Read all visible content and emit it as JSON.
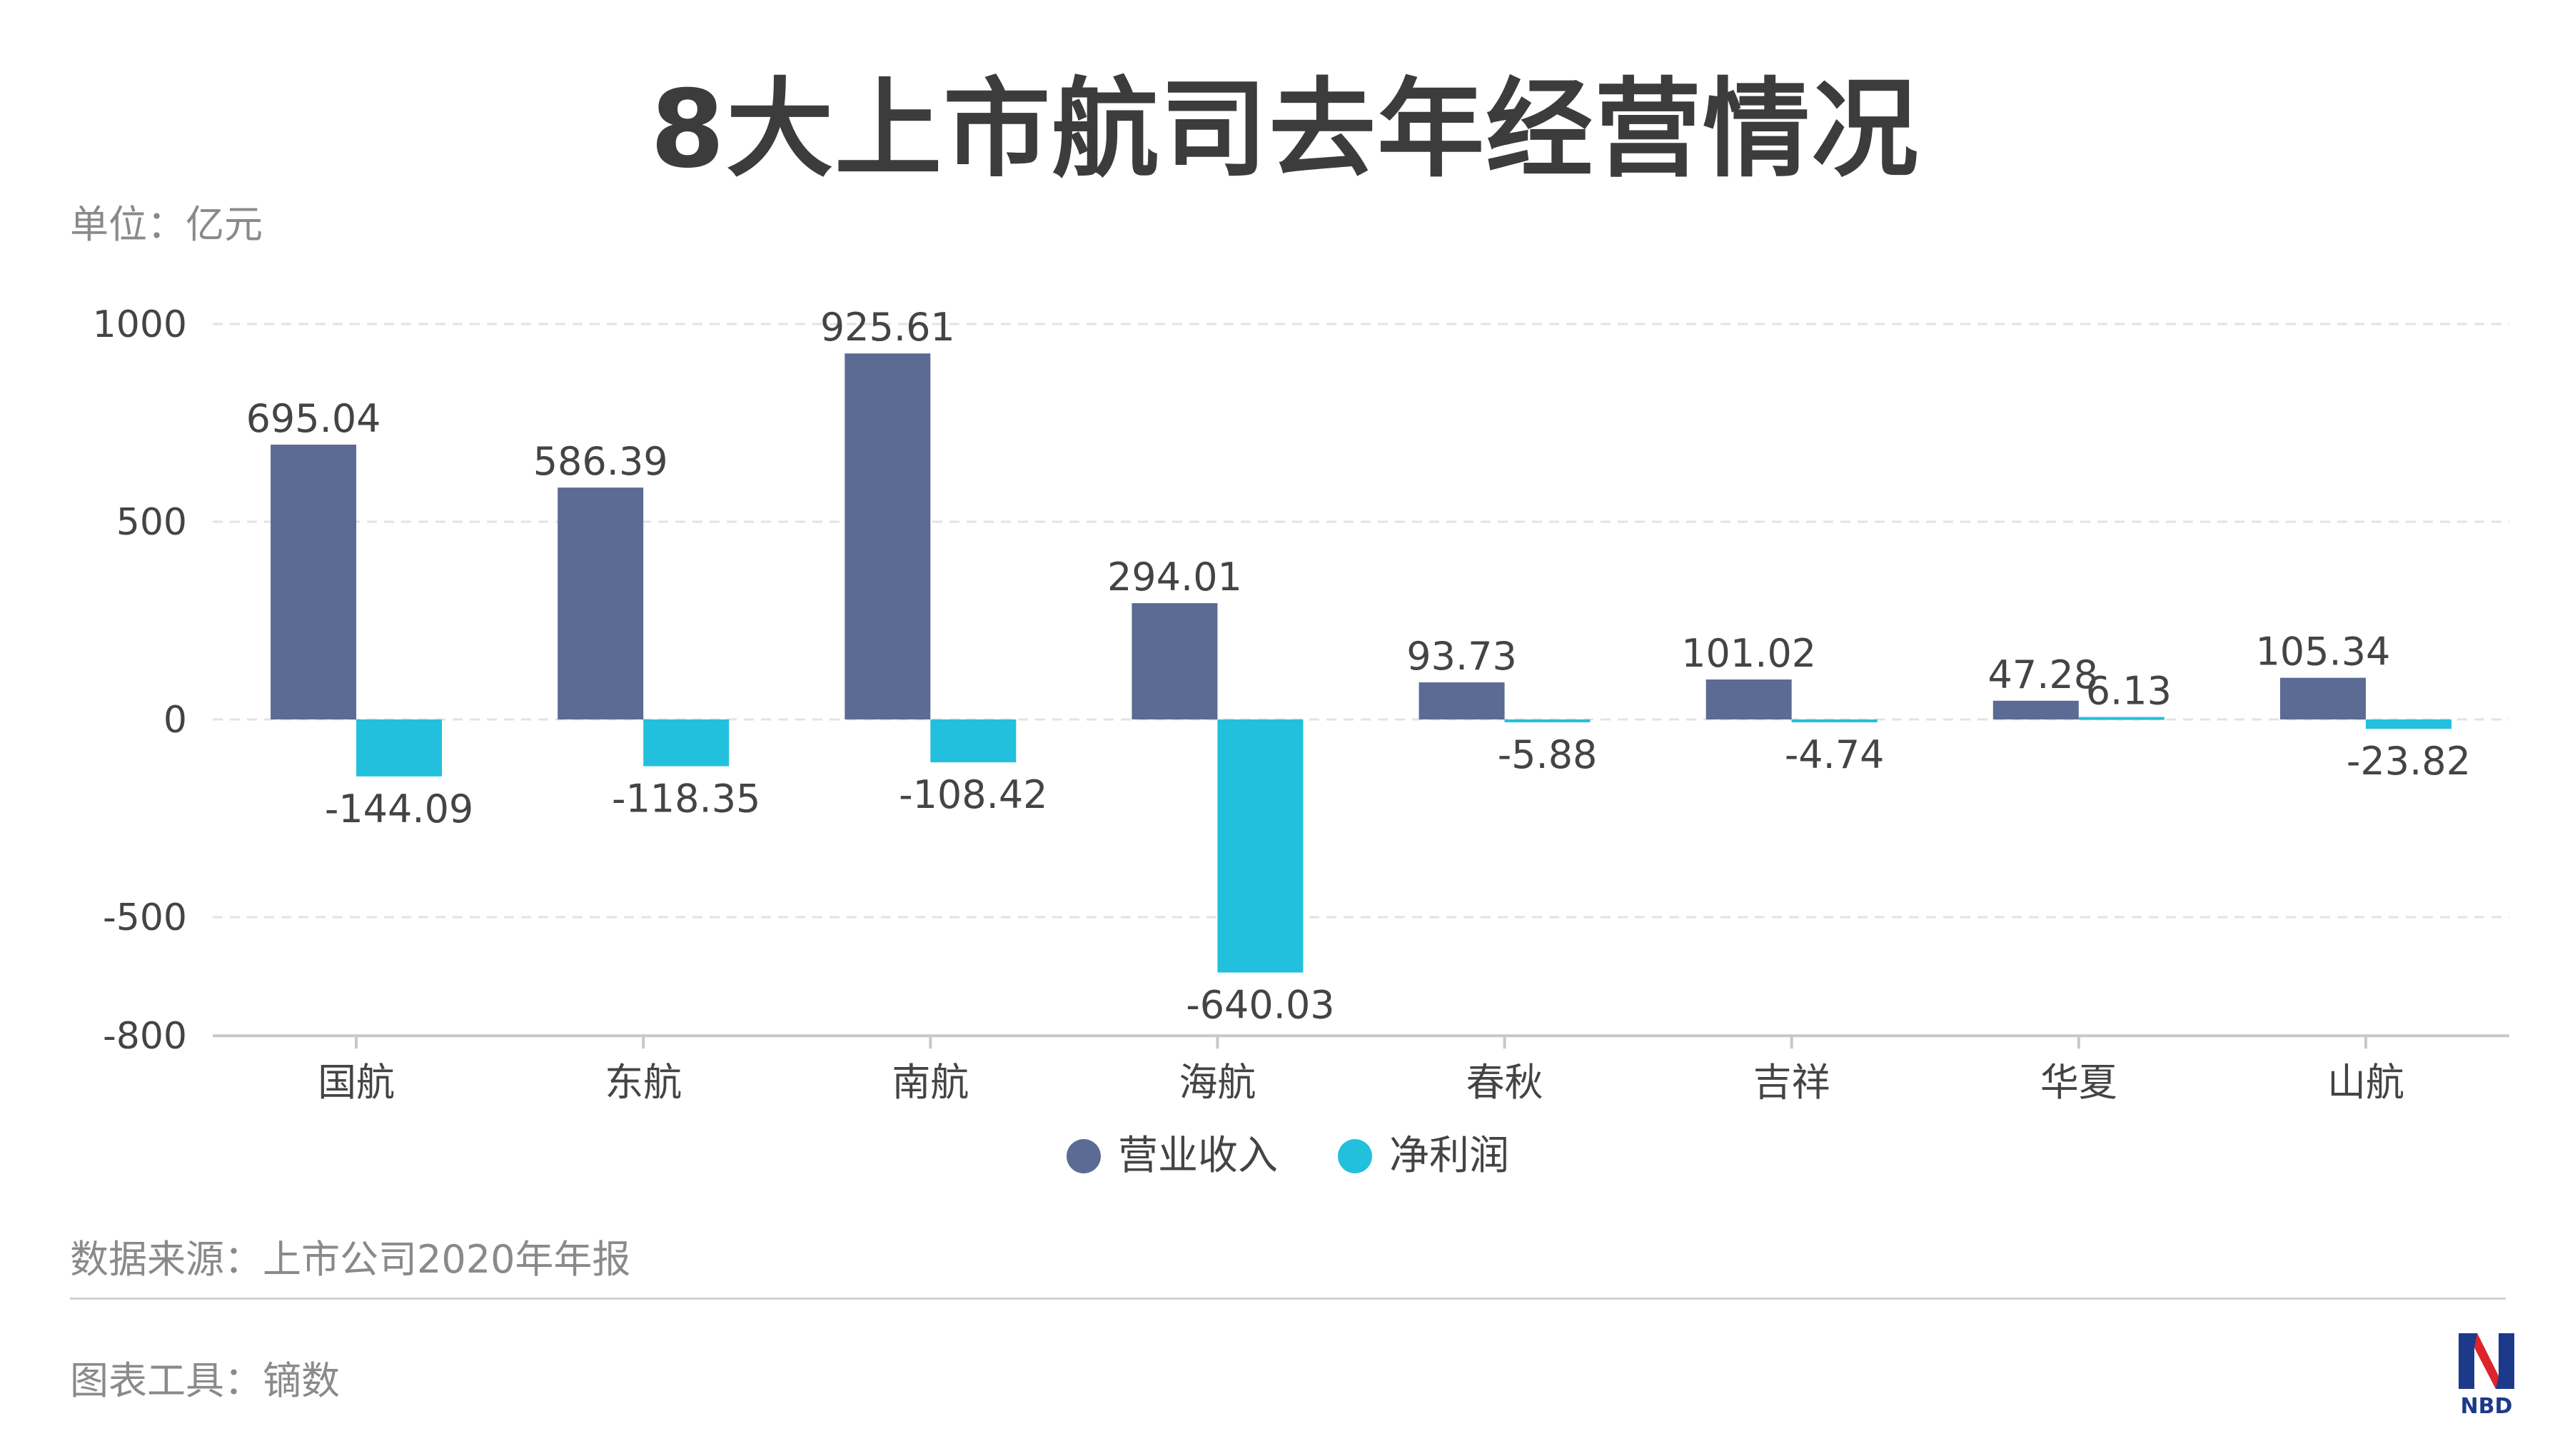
{
  "header": {
    "title": "8大上市航司去年经营情况",
    "unit": "单位：亿元"
  },
  "footer": {
    "source": "数据来源：上市公司2020年年报",
    "tool": "图表工具：镝数"
  },
  "logo": {
    "text": "NBD"
  },
  "colors": {
    "revenue": "#5b6b93",
    "profit": "#22c0dc",
    "axis_text": "#444444",
    "grid": "#e3e3e3"
  },
  "chart_data": {
    "type": "bar",
    "categories": [
      "国航",
      "东航",
      "南航",
      "海航",
      "春秋",
      "吉祥",
      "华夏",
      "山航"
    ],
    "series": [
      {
        "name": "营业收入",
        "values": [
          695.04,
          586.39,
          925.61,
          294.01,
          93.73,
          101.02,
          47.28,
          105.34
        ]
      },
      {
        "name": "净利润",
        "values": [
          -144.09,
          -118.35,
          -108.42,
          -640.03,
          -5.88,
          -4.74,
          6.13,
          -23.82
        ]
      }
    ],
    "yticks": [
      1000,
      500,
      0,
      -500,
      -800
    ],
    "ylim": [
      -800,
      1000
    ],
    "grid": true,
    "legend": "bottom-center"
  }
}
